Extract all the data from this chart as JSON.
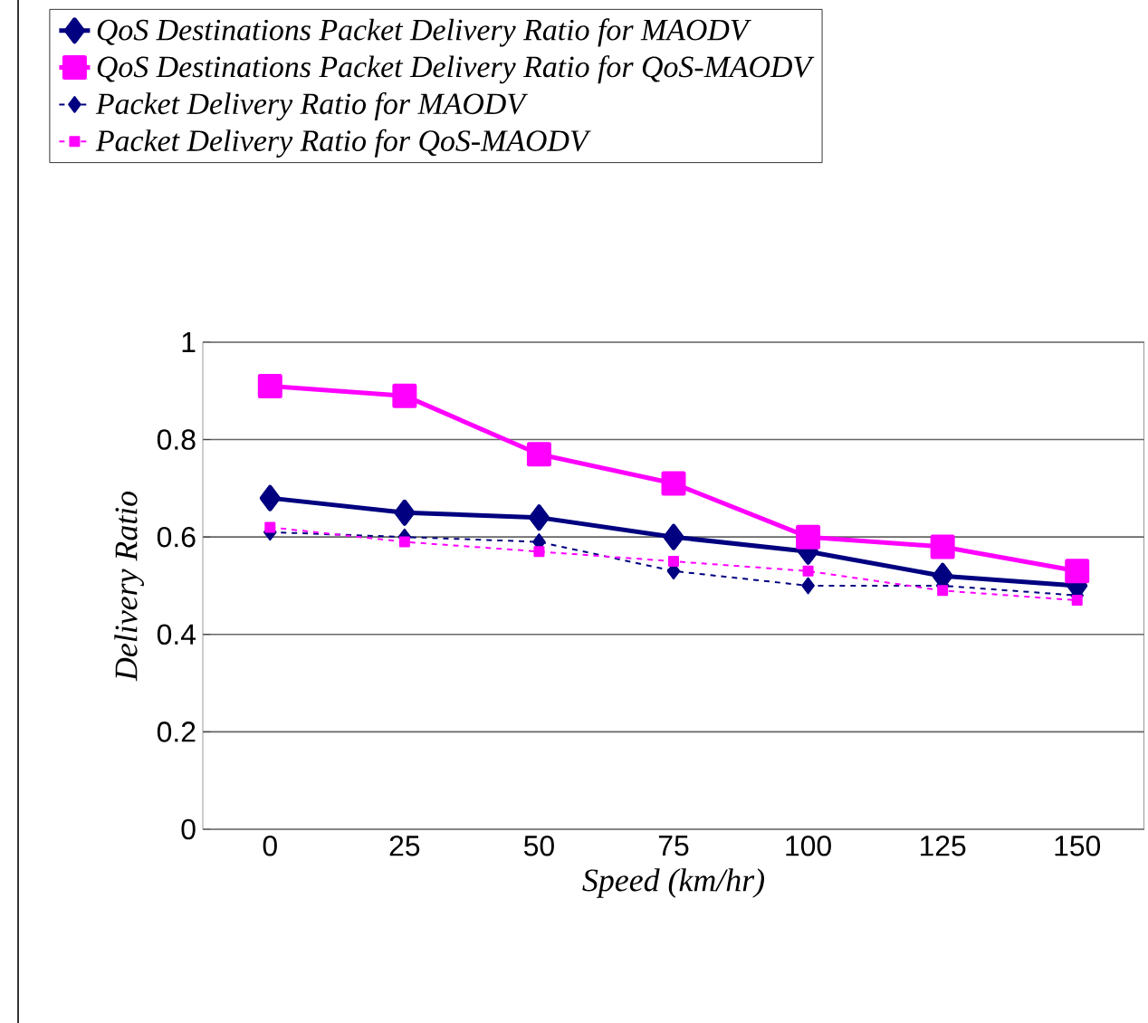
{
  "chart_data": {
    "type": "line",
    "xlabel": "Speed (km/hr)",
    "ylabel": "Delivery Ratio",
    "categories": [
      "0",
      "25",
      "50",
      "75",
      "100",
      "125",
      "150"
    ],
    "series": [
      {
        "name": "QoS Destinations Packet Delivery Ratio for MAODV",
        "color": "#000080",
        "marker": "diamond",
        "line_style": "solid",
        "values": [
          0.68,
          0.65,
          0.64,
          0.6,
          0.57,
          0.52,
          0.5
        ]
      },
      {
        "name": "QoS Destinations Packet Delivery Ratio for QoS-MAODV",
        "color": "#ff00ff",
        "marker": "square",
        "line_style": "solid",
        "values": [
          0.91,
          0.89,
          0.77,
          0.71,
          0.6,
          0.58,
          0.53
        ]
      },
      {
        "name": "Packet Delivery Ratio for MAODV",
        "color": "#000080",
        "marker": "diamond",
        "line_style": "dashed",
        "values": [
          0.61,
          0.6,
          0.59,
          0.53,
          0.5,
          0.5,
          0.48
        ]
      },
      {
        "name": "Packet Delivery Ratio for QoS-MAODV",
        "color": "#ff00ff",
        "marker": "square",
        "line_style": "dashed",
        "values": [
          0.62,
          0.59,
          0.57,
          0.55,
          0.53,
          0.49,
          0.47
        ]
      }
    ],
    "ylim": [
      0,
      1
    ],
    "yticks": [
      0,
      0.2,
      0.4,
      0.6,
      0.8,
      1
    ],
    "grid": "y",
    "legend": "top"
  }
}
